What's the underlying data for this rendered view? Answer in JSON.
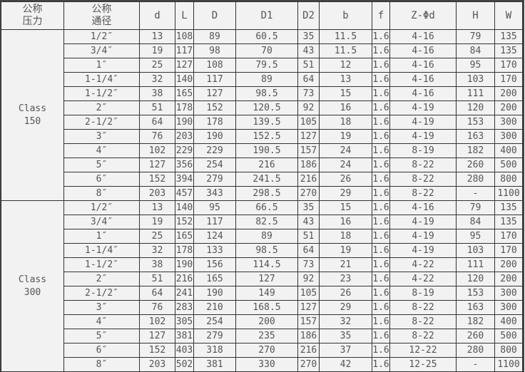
{
  "headers": [
    "公称\n压力",
    "公称\n通径",
    "d",
    "L",
    "D",
    "D1",
    "D2",
    "b",
    "f",
    "Z-Φd",
    "H",
    "W"
  ],
  "groups": [
    {
      "label": "Class\n150",
      "rows": [
        [
          "1/2″",
          "13",
          "108",
          "89",
          "60.5",
          "35",
          "11.5",
          "1.6",
          "4-16",
          "79",
          "135"
        ],
        [
          "3/4″",
          "19",
          "117",
          "98",
          "70",
          "43",
          "11.5",
          "1.6",
          "4-16",
          "84",
          "135"
        ],
        [
          "1″",
          "25",
          "127",
          "108",
          "79.5",
          "51",
          "12",
          "1.6",
          "4-16",
          "95",
          "170"
        ],
        [
          "1-1/4″",
          "32",
          "140",
          "117",
          "89",
          "64",
          "13",
          "1.6",
          "4-16",
          "103",
          "170"
        ],
        [
          "1-1/2″",
          "38",
          "165",
          "127",
          "98.5",
          "73",
          "15",
          "1.6",
          "4-16",
          "111",
          "200"
        ],
        [
          "2″",
          "51",
          "178",
          "152",
          "120.5",
          "92",
          "16",
          "1.6",
          "4-19",
          "120",
          "200"
        ],
        [
          "2-1/2″",
          "64",
          "190",
          "178",
          "139.5",
          "105",
          "18",
          "1.6",
          "4-19",
          "153",
          "300"
        ],
        [
          "3″",
          "76",
          "203",
          "190",
          "152.5",
          "127",
          "19",
          "1.6",
          "4-19",
          "163",
          "300"
        ],
        [
          "4″",
          "102",
          "229",
          "229",
          "190.5",
          "157",
          "24",
          "1.6",
          "8-19",
          "182",
          "400"
        ],
        [
          "5″",
          "127",
          "356",
          "254",
          "216",
          "186",
          "24",
          "1.6",
          "8-22",
          "260",
          "500"
        ],
        [
          "6″",
          "152",
          "394",
          "279",
          "241.5",
          "216",
          "26",
          "1.6",
          "8-22",
          "280",
          "800"
        ],
        [
          "8″",
          "203",
          "457",
          "343",
          "298.5",
          "270",
          "29",
          "1.6",
          "8-22",
          "-",
          "1100"
        ]
      ]
    },
    {
      "label": "Class\n300",
      "rows": [
        [
          "1/2″",
          "13",
          "140",
          "95",
          "66.5",
          "35",
          "15",
          "1.6",
          "4-16",
          "79",
          "135"
        ],
        [
          "3/4″",
          "19",
          "152",
          "117",
          "82.5",
          "43",
          "16",
          "1.6",
          "4-19",
          "84",
          "135"
        ],
        [
          "1″",
          "25",
          "165",
          "124",
          "89",
          "51",
          "18",
          "1.6",
          "4-19",
          "95",
          "170"
        ],
        [
          "1-1/4″",
          "32",
          "178",
          "133",
          "98.5",
          "64",
          "19",
          "1.6",
          "4-19",
          "103",
          "170"
        ],
        [
          "1-1/2″",
          "38",
          "190",
          "156",
          "114.5",
          "73",
          "21",
          "1.6",
          "4-22",
          "111",
          "200"
        ],
        [
          "2″",
          "51",
          "216",
          "165",
          "127",
          "92",
          "23",
          "1.6",
          "4-22",
          "120",
          "200"
        ],
        [
          "2-1/2″",
          "64",
          "241",
          "190",
          "149",
          "105",
          "26",
          "1.6",
          "8-19",
          "153",
          "300"
        ],
        [
          "3″",
          "76",
          "283",
          "210",
          "168.5",
          "127",
          "29",
          "1.6",
          "8-22",
          "163",
          "300"
        ],
        [
          "4″",
          "102",
          "305",
          "254",
          "200",
          "157",
          "32",
          "1.6",
          "8-22",
          "182",
          "400"
        ],
        [
          "5″",
          "127",
          "381",
          "279",
          "235",
          "186",
          "35",
          "1.6",
          "8-22",
          "260",
          "500"
        ],
        [
          "6″",
          "152",
          "403",
          "318",
          "270",
          "216",
          "37",
          "1.6",
          "12-22",
          "280",
          "800"
        ],
        [
          "8″",
          "203",
          "502",
          "381",
          "330",
          "270",
          "42",
          "1.6",
          "12-25",
          "-",
          "1100"
        ]
      ]
    }
  ]
}
